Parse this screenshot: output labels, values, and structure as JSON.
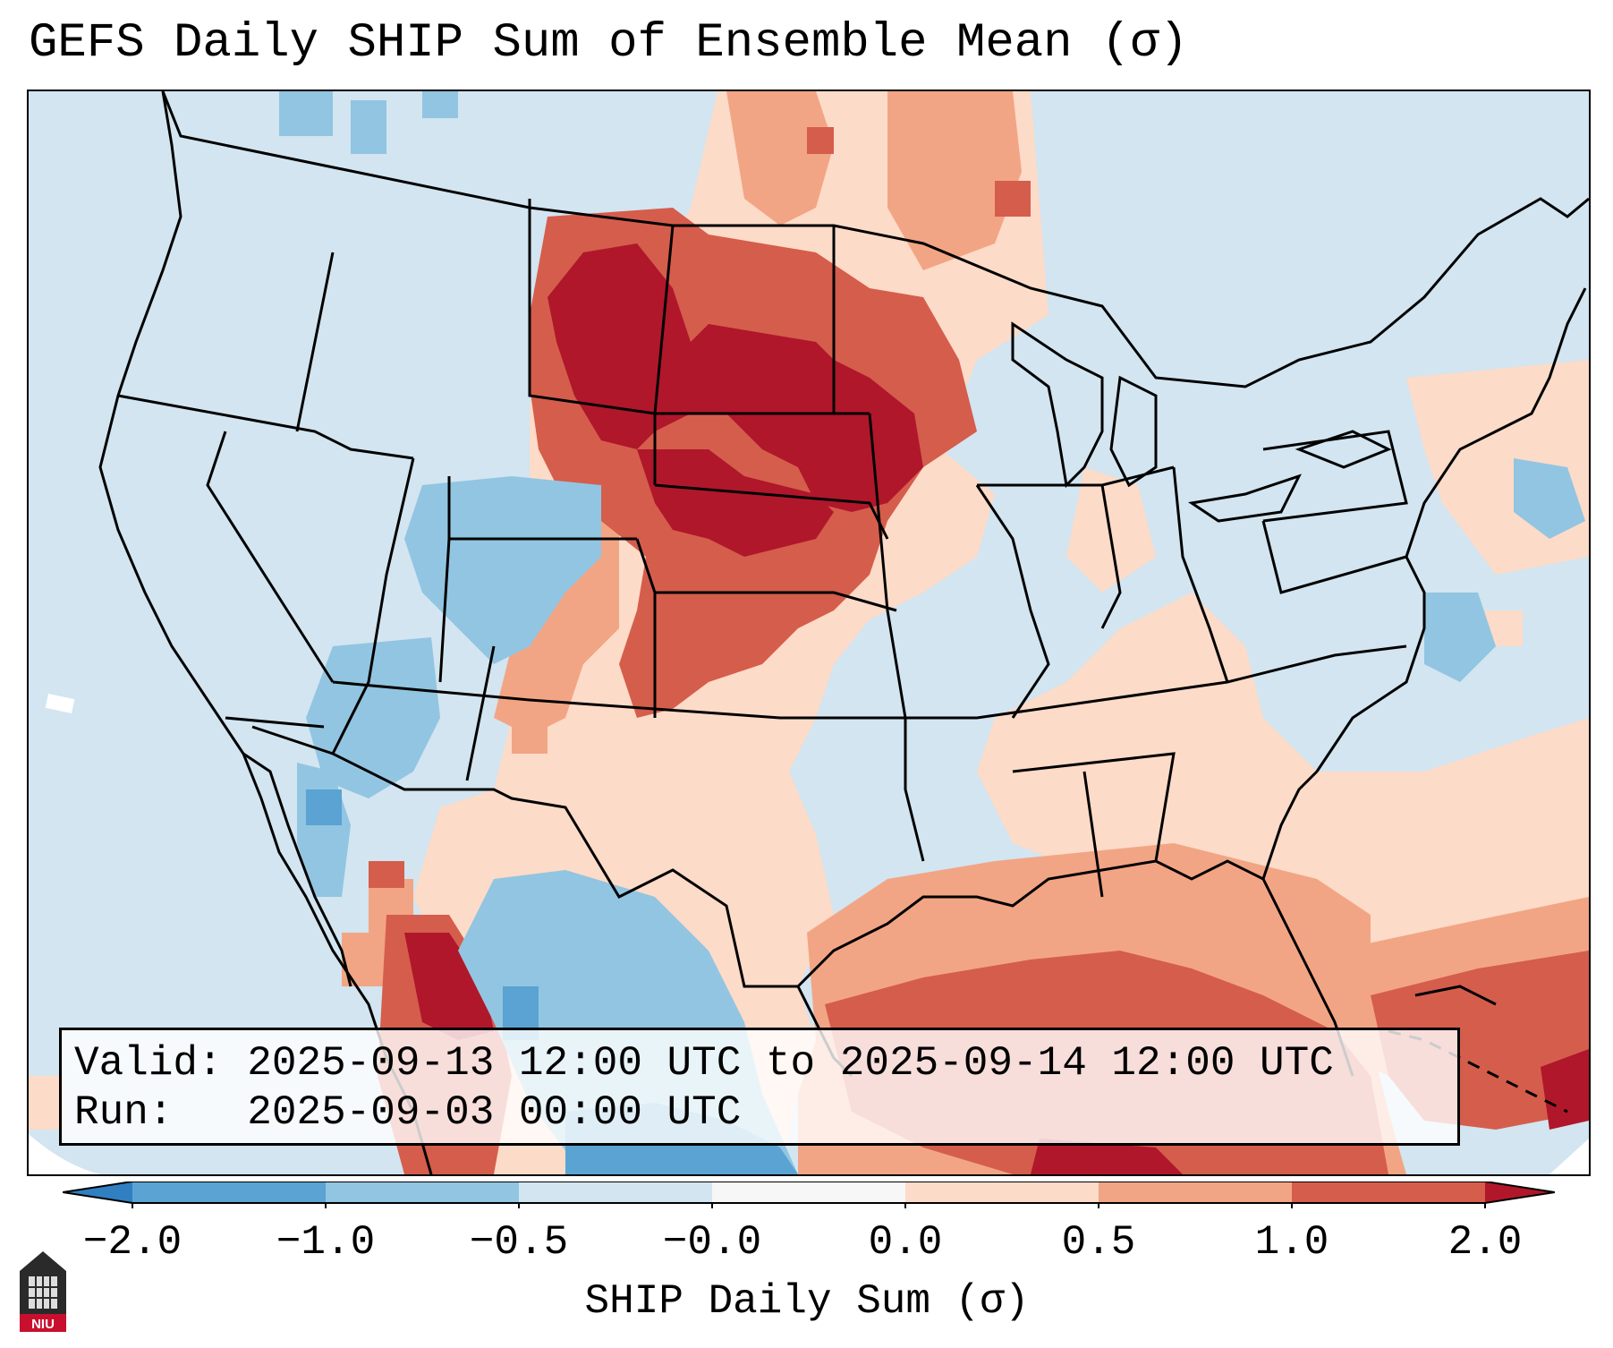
{
  "title": "GEFS Daily SHIP Sum of Ensemble Mean (σ)",
  "info": {
    "valid_label": "Valid:",
    "valid_value": "2025-09-13 12:00 UTC to 2025-09-14 12:00 UTC",
    "run_label": "Run:",
    "run_value": "2025-09-03 00:00 UTC"
  },
  "colorbar": {
    "label": "SHIP Daily Sum (σ)",
    "ticks": [
      "−2.0",
      "−1.0",
      "−0.5",
      "−0.0",
      "0.0",
      "0.5",
      "1.0",
      "2.0"
    ],
    "colors": [
      "#2f7fc1",
      "#5aa3d3",
      "#92c5e1",
      "#d2e5f0",
      "#f7f7f7",
      "#fcdbc8",
      "#f2a584",
      "#d55d4c",
      "#b0172b"
    ],
    "extend": "both"
  },
  "map": {
    "background_color": "#d2e5f0",
    "outline_color": "#000000"
  },
  "logo": {
    "text": "NIU",
    "color": "#c8102e"
  }
}
